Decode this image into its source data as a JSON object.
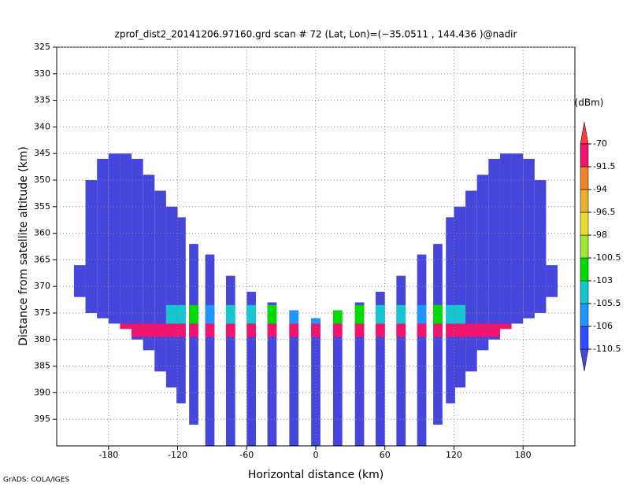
{
  "chart_data": {
    "type": "profile-columns",
    "title": "zprof_dist2_20141206.97160.grd  scan # 72  (Lat, Lon)=(−35.0511 , 144.436 )@nadir",
    "x_label": "Horizontal distance (km)",
    "y_label": "Distance from satellite altitude (km)",
    "colorbar_label": "(dBm)",
    "footer": "GrADS: COLA/IGES",
    "xlim": [
      -225,
      225
    ],
    "ylim": [
      325,
      400
    ],
    "y_inverted": true,
    "xticks": [
      -180,
      -120,
      -60,
      0,
      60,
      120,
      180
    ],
    "yticks": [
      325,
      330,
      335,
      340,
      345,
      350,
      355,
      360,
      365,
      370,
      375,
      380,
      385,
      390,
      395
    ],
    "grid": true,
    "levels": [
      -110.5,
      -106,
      -105.5,
      -103,
      -100.5,
      -98,
      -96.5,
      -94,
      -91.5,
      -70
    ],
    "colors": [
      "#4646dc",
      "#2c4cff",
      "#1e96ff",
      "#14c8d2",
      "#00dc00",
      "#a0e632",
      "#e6dc32",
      "#e6af2d",
      "#f08228",
      "#f0146e",
      "#fa3c3c"
    ],
    "columns": {
      "x": [
        -205,
        -195,
        -185,
        -175,
        -165,
        -155,
        -145,
        -135,
        -125,
        -117,
        -106,
        -92,
        -74,
        -56,
        -38,
        -19,
        0,
        19,
        38,
        56,
        74,
        92,
        106,
        117,
        125,
        135,
        145,
        155,
        165,
        175,
        185,
        195,
        205
      ],
      "widths": [
        10,
        10,
        10,
        10,
        10,
        10,
        10,
        10,
        10,
        8,
        8,
        8,
        8,
        8,
        8,
        8,
        8,
        8,
        8,
        8,
        8,
        8,
        8,
        8,
        10,
        10,
        10,
        10,
        10,
        10,
        10,
        10,
        10
      ],
      "top": [
        366,
        350,
        346,
        345,
        345,
        346,
        349,
        352,
        355,
        357,
        362,
        364,
        368,
        371,
        373,
        374.5,
        376,
        374.5,
        373,
        371,
        368,
        364,
        362,
        357,
        355,
        352,
        349,
        346,
        345,
        345,
        346,
        350,
        366
      ],
      "bottom": [
        372,
        375,
        376,
        377,
        378,
        380,
        382,
        386,
        389,
        392,
        396,
        400,
        400,
        400,
        400,
        400,
        400,
        400,
        400,
        400,
        400,
        400,
        396,
        392,
        389,
        386,
        382,
        380,
        378,
        377,
        376,
        375,
        372
      ],
      "base_value": -112,
      "band_range": [
        377,
        379.5
      ],
      "peak": [
        null,
        null,
        null,
        null,
        -85,
        -80,
        -80,
        -82,
        -85,
        -88,
        -88,
        -85,
        -87,
        -85,
        -85,
        -88,
        -88,
        -88,
        -85,
        -85,
        -87,
        -85,
        -88,
        -88,
        -85,
        -82,
        -80,
        -80,
        -85,
        null,
        null,
        null,
        null
      ],
      "halo_range": [
        373.5,
        377
      ],
      "halo": [
        null,
        null,
        null,
        null,
        null,
        null,
        null,
        null,
        -104,
        -104,
        -103,
        -106,
        -104,
        -104,
        -103,
        -106,
        -106,
        -103,
        -103,
        -104,
        -104,
        -106,
        -103,
        -104,
        -104,
        null,
        null,
        null,
        null,
        null,
        null,
        null,
        null
      ]
    }
  }
}
